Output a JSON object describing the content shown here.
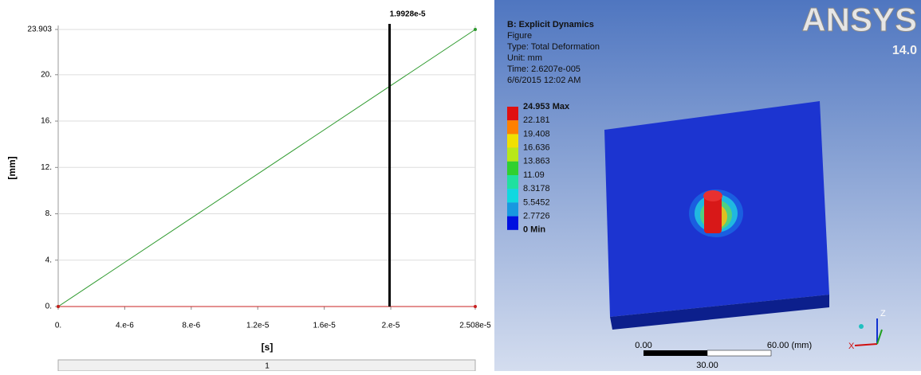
{
  "chart_data": {
    "type": "line",
    "x_label": "[s]",
    "y_label": "[mm]",
    "x": [
      0,
      2.508e-05
    ],
    "series": [
      {
        "color": "#2e9a2e",
        "values": [
          0,
          23.903
        ]
      },
      {
        "color": "#c82020",
        "values": [
          0,
          0
        ]
      }
    ],
    "xlim": [
      0,
      2.508e-05
    ],
    "xticks": [
      {
        "value": 0,
        "label": "0."
      },
      {
        "value": 4e-06,
        "label": "4.e-6"
      },
      {
        "value": 8e-06,
        "label": "8.e-6"
      },
      {
        "value": 1.2e-05,
        "label": "1.2e-5"
      },
      {
        "value": 1.6e-05,
        "label": "1.6e-5"
      },
      {
        "value": 2e-05,
        "label": "2.e-5"
      },
      {
        "value": 2.508e-05,
        "label": "2.508e-5"
      }
    ],
    "ylim": [
      0,
      23.903
    ],
    "yticks": [
      {
        "value": 0,
        "label": "0."
      },
      {
        "value": 4,
        "label": "4."
      },
      {
        "value": 8,
        "label": "8."
      },
      {
        "value": 12,
        "label": "12."
      },
      {
        "value": 16,
        "label": "16."
      },
      {
        "value": 20,
        "label": "20."
      },
      23.903
    ],
    "cursor": {
      "value": 1.9928e-05,
      "label": "1.9928e-5"
    },
    "grid": true
  },
  "table": {
    "rows": [
      [
        "1"
      ]
    ]
  },
  "viewer": {
    "title": "B: Explicit Dynamics",
    "info": [
      "Figure",
      "Type: Total Deformation",
      "Unit: mm",
      "Time: 2.6207e-005",
      "6/6/2015 12:02 AM"
    ],
    "logo": "ANSYS",
    "version": "14.0",
    "legend": {
      "labels": [
        "24.953 Max",
        "22.181",
        "19.408",
        "16.636",
        "13.863",
        "11.09",
        "8.3178",
        "5.5452",
        "2.7726",
        "0 Min"
      ],
      "colors": [
        "#e01010",
        "#ff8000",
        "#f0e000",
        "#b8e818",
        "#30d030",
        "#20e0a0",
        "#10d8e0",
        "#1898e0",
        "#0010e0"
      ]
    },
    "scale": {
      "start": "0.00",
      "end": "60.00 (mm)",
      "mid": "30.00"
    },
    "triad": {
      "z": "Z",
      "x": "X"
    }
  }
}
